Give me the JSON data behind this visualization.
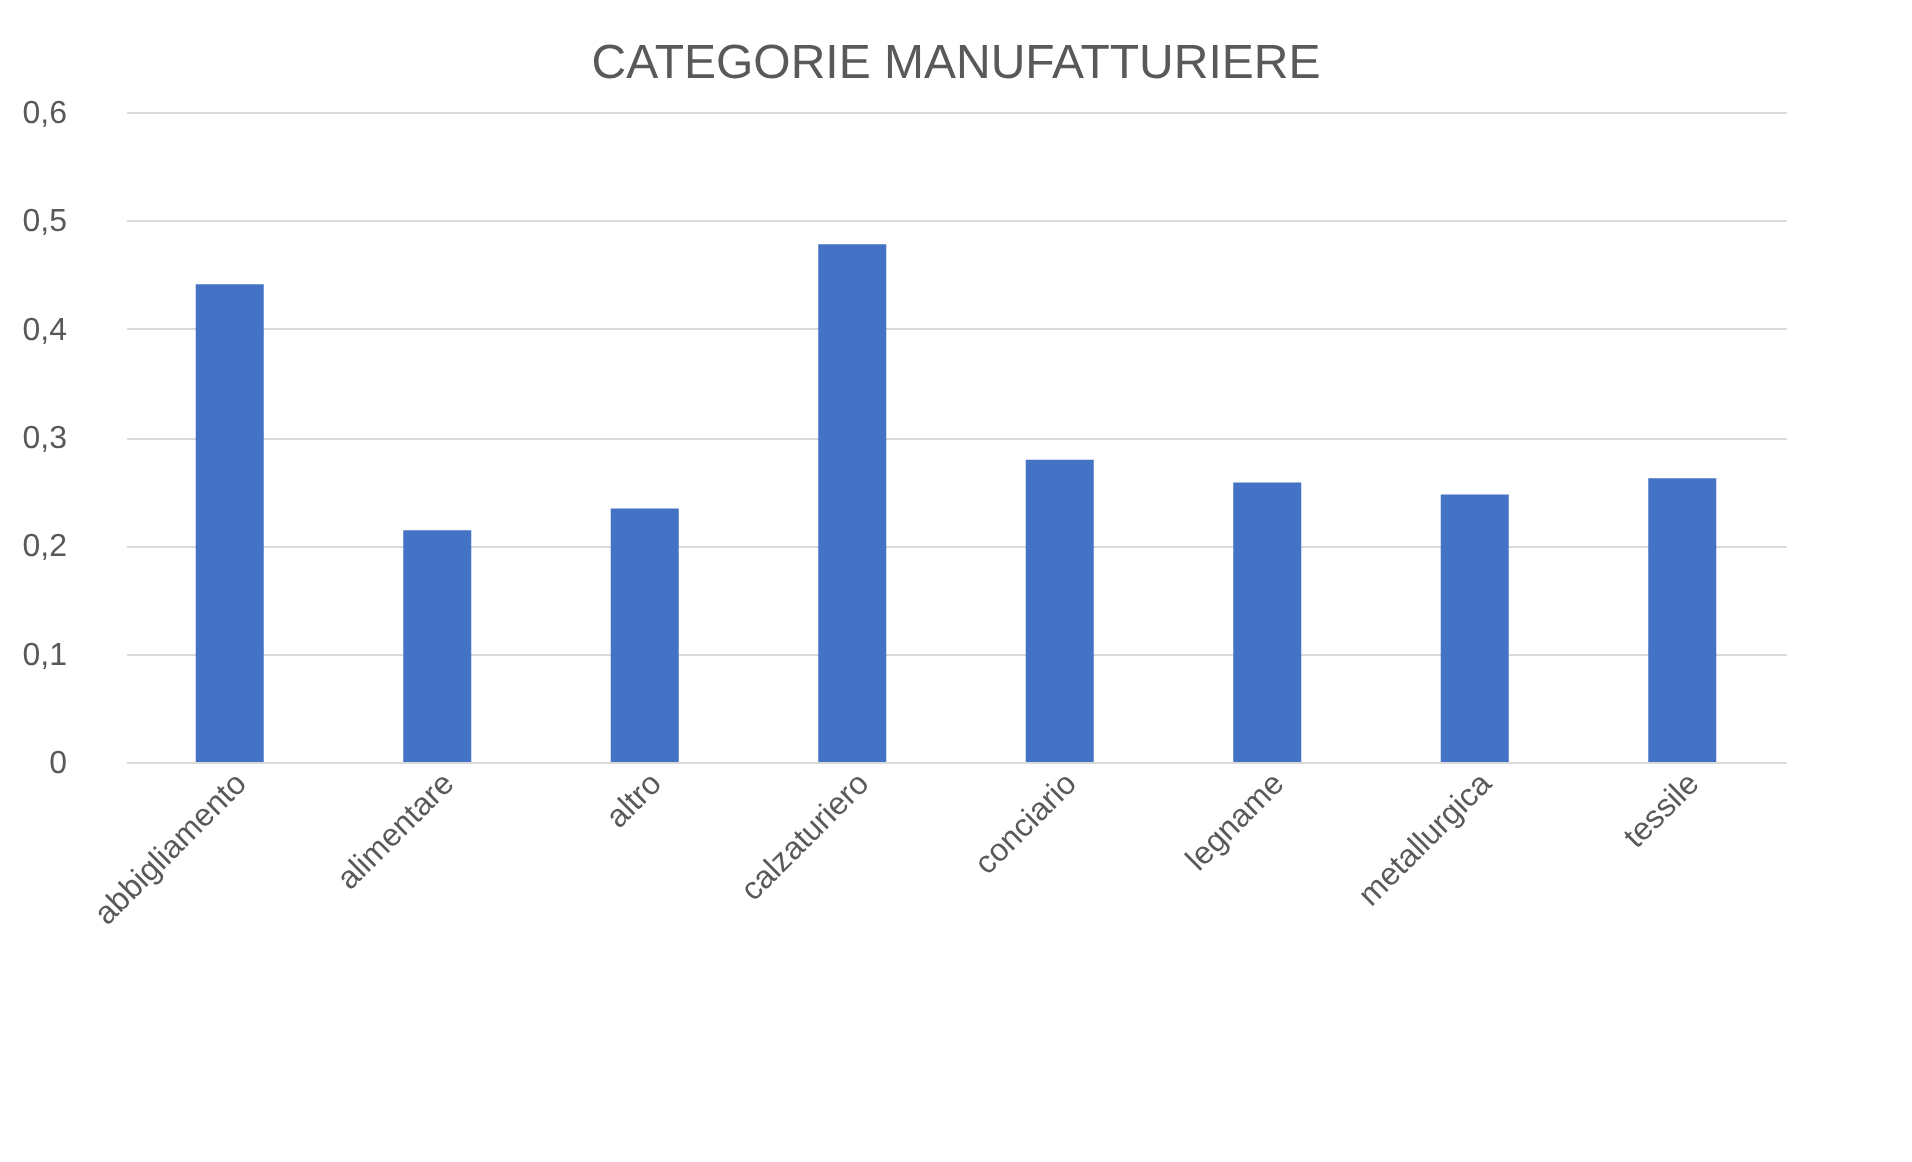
{
  "chart_data": {
    "type": "bar",
    "title": "CATEGORIE MANUFATTURIERE",
    "categories": [
      "abbigliamento",
      "alimentare",
      "altro",
      "calzaturiero",
      "conciario",
      "legname",
      "metallurgica",
      "tessile"
    ],
    "values": [
      0.441,
      0.214,
      0.234,
      0.478,
      0.279,
      0.258,
      0.247,
      0.262
    ],
    "color": "#4472c4",
    "ylim": [
      0,
      0.6
    ],
    "yticks": [
      0,
      {
        "value": 0.1,
        "label": "0,1"
      },
      {
        "value": 0.2,
        "label": "0,2"
      },
      {
        "value": 0.3,
        "label": "0,3"
      },
      {
        "value": 0.4,
        "label": "0,4"
      },
      {
        "value": 0.5,
        "label": "0,5"
      },
      {
        "value": 0.6,
        "label": "0,6"
      }
    ],
    "grid": "y"
  }
}
